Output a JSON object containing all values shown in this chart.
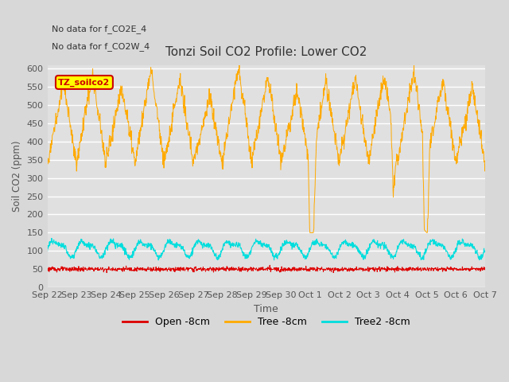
{
  "title": "Tonzi Soil CO2 Profile: Lower CO2",
  "ylabel": "Soil CO2 (ppm)",
  "xlabel": "Time",
  "annotations": [
    "No data for f_CO2E_4",
    "No data for f_CO2W_4"
  ],
  "legend_box_label": "TZ_soilco2",
  "legend_entries": [
    "Open -8cm",
    "Tree -8cm",
    "Tree2 -8cm"
  ],
  "legend_colors": [
    "#dd0000",
    "#ffaa00",
    "#00dddd"
  ],
  "ylim": [
    0,
    610
  ],
  "yticks": [
    0,
    50,
    100,
    150,
    200,
    250,
    300,
    350,
    400,
    450,
    500,
    550,
    600
  ],
  "bg_color": "#d8d8d8",
  "plot_bg_color": "#e0e0e0",
  "grid_color": "#ffffff",
  "open_color": "#dd0000",
  "tree_color": "#ffaa00",
  "tree2_color": "#00dddd",
  "n_days": 15,
  "pts_per_day": 96
}
